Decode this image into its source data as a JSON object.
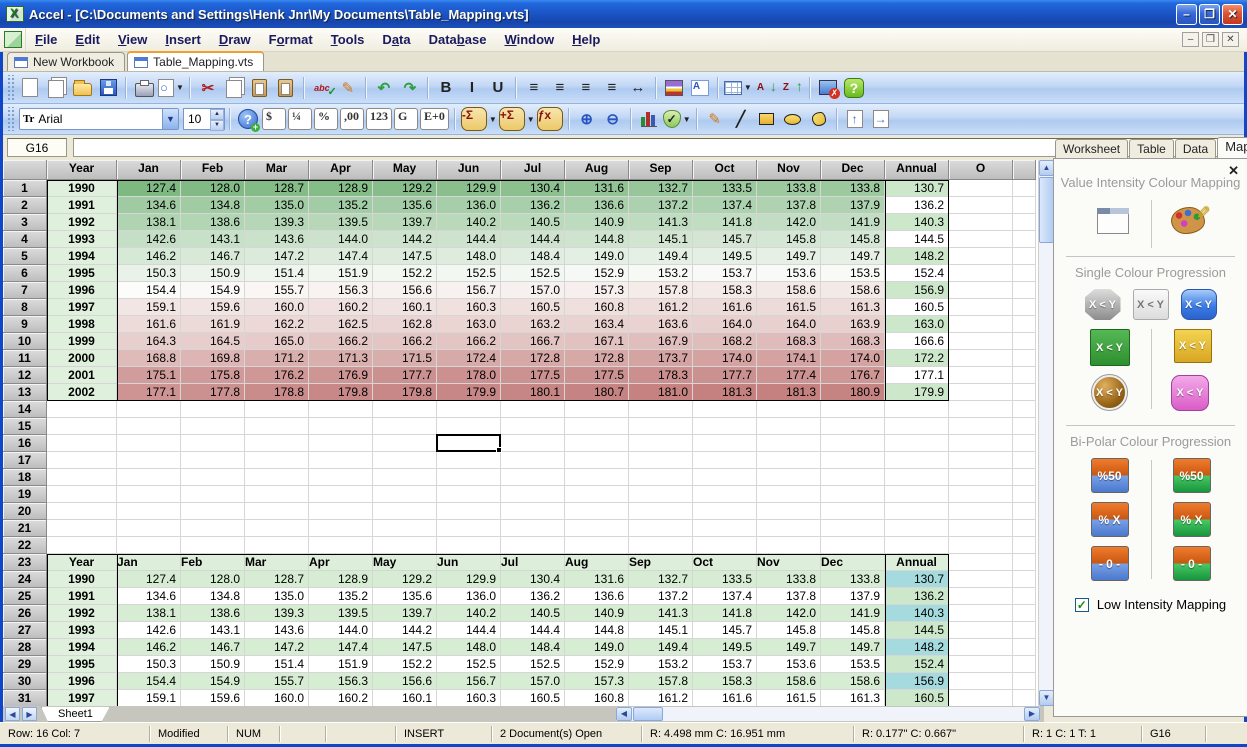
{
  "window": {
    "title": "Accel - [C:\\Documents and Settings\\Henk Jnr\\My Documents\\Table_Mapping.vts]"
  },
  "menu": {
    "items": [
      {
        "pre": "",
        "key": "F",
        "post": "ile"
      },
      {
        "pre": "",
        "key": "E",
        "post": "dit"
      },
      {
        "pre": "",
        "key": "V",
        "post": "iew"
      },
      {
        "pre": "",
        "key": "I",
        "post": "nsert"
      },
      {
        "pre": "",
        "key": "D",
        "post": "raw"
      },
      {
        "pre": "F",
        "key": "o",
        "post": "rmat"
      },
      {
        "pre": "",
        "key": "T",
        "post": "ools"
      },
      {
        "pre": "D",
        "key": "a",
        "post": "ta"
      },
      {
        "pre": "Data",
        "key": "b",
        "post": "ase"
      },
      {
        "pre": "",
        "key": "W",
        "post": "indow"
      },
      {
        "pre": "",
        "key": "H",
        "post": "elp"
      }
    ]
  },
  "doc_tabs": [
    {
      "label": "New Workbook",
      "active": false
    },
    {
      "label": "Table_Mapping.vts",
      "active": true
    }
  ],
  "toolbar1": [
    {
      "n": "new-document-icon",
      "c": "i-page"
    },
    {
      "n": "copy-pages-icon",
      "c": "i-pages"
    },
    {
      "n": "open-folder-icon",
      "c": "i-folder"
    },
    {
      "n": "save-icon",
      "c": "i-disk"
    },
    {
      "sep": true
    },
    {
      "n": "print-icon",
      "c": "i-printer"
    },
    {
      "n": "print-preview-icon",
      "c": "i-zoomdoc",
      "dd": true
    },
    {
      "sep": true
    },
    {
      "n": "cut-icon",
      "g": "✂",
      "cl": "gl-red"
    },
    {
      "n": "copy-icon",
      "c": "i-pages"
    },
    {
      "n": "paste-icon",
      "c": "i-clip",
      "pg": true
    },
    {
      "n": "paste-special-icon",
      "c": "i-clip",
      "pg": true
    },
    {
      "sep": true
    },
    {
      "n": "spellcheck-icon",
      "g": "abc",
      "cl": "i-abc"
    },
    {
      "n": "edit-pen-icon",
      "g": "✎",
      "cl": "gl-orange"
    },
    {
      "sep": true
    },
    {
      "n": "undo-icon",
      "g": "↶",
      "cl": "gl-green"
    },
    {
      "n": "redo-icon",
      "g": "↷",
      "cl": "gl-green"
    },
    {
      "sep": true
    },
    {
      "n": "bold-icon",
      "g": "B",
      "cl": "gl-dark"
    },
    {
      "n": "italic-icon",
      "g": "I",
      "cl": "gl-dark"
    },
    {
      "n": "underline-icon",
      "g": "U",
      "cl": "gl-dark"
    },
    {
      "sep": true
    },
    {
      "n": "align-left-icon",
      "g": "≡",
      "cl": "gl-dark"
    },
    {
      "n": "align-center-icon",
      "g": "≡",
      "cl": "gl-dark"
    },
    {
      "n": "align-right-icon",
      "g": "≡",
      "cl": "gl-dark"
    },
    {
      "n": "justify-icon",
      "g": "≡",
      "cl": "gl-dark"
    },
    {
      "n": "fit-width-icon",
      "g": "↔",
      "cl": "gl-dark"
    },
    {
      "sep": true
    },
    {
      "n": "fill-color-icon",
      "c": "i-cards"
    },
    {
      "n": "font-format-icon",
      "g": "A",
      "c": "i-fontbox"
    },
    {
      "sep": true
    },
    {
      "n": "table-borders-icon",
      "c": "i-table",
      "dd": true
    },
    {
      "n": "sort-ascending-icon",
      "g": "A",
      "cl": "i-sortA"
    },
    {
      "n": "sort-descending-icon",
      "g": "Z",
      "cl": "i-sortZ"
    },
    {
      "sep": true
    },
    {
      "n": "close-document-icon",
      "c": "i-monx"
    },
    {
      "n": "help-icon",
      "g": "?",
      "c": "i-help"
    }
  ],
  "toolbar2": {
    "font_name": "Arial",
    "font_size": "10",
    "icons": [
      {
        "sep": true
      },
      {
        "n": "insert-help-icon",
        "g": "?",
        "c": "i-helpq"
      },
      {
        "n": "currency-format-icon",
        "g": "$",
        "c": "btn-white"
      },
      {
        "n": "fraction-format-icon",
        "g": "¼",
        "c": "btn-white"
      },
      {
        "n": "percent-format-icon",
        "g": "%",
        "c": "btn-white"
      },
      {
        "n": "comma-format-icon",
        "g": ",00",
        "c": "btn-white"
      },
      {
        "n": "number-format-icon",
        "g": "123",
        "c": "btn-white"
      },
      {
        "n": "general-format-icon",
        "g": "G",
        "c": "btn-white"
      },
      {
        "n": "scientific-format-icon",
        "g": "E+0",
        "c": "btn-white"
      },
      {
        "sep": true
      },
      {
        "n": "sum-minus-icon",
        "g": "-Σ",
        "c": "btn-octa",
        "dd": true
      },
      {
        "n": "sum-plus-icon",
        "g": "+Σ",
        "c": "btn-octa",
        "dd": true
      },
      {
        "n": "function-icon",
        "g": "ƒx",
        "c": "btn-octa"
      },
      {
        "sep": true
      },
      {
        "n": "zoom-in-icon",
        "g": "⊕",
        "cl": "gl-blue"
      },
      {
        "n": "zoom-out-icon",
        "g": "⊖",
        "cl": "gl-blue"
      },
      {
        "sep": true
      },
      {
        "n": "chart-icon",
        "c": "i-chart",
        "bars": true
      },
      {
        "n": "validate-shield-icon",
        "g": "✓",
        "c": "i-shield",
        "dd": true
      },
      {
        "sep": true
      },
      {
        "n": "pencil-icon",
        "g": "✎",
        "cl": "gl-orange"
      },
      {
        "n": "line-icon",
        "g": "╱",
        "cl": "gl-dark"
      },
      {
        "n": "rectangle-icon",
        "c": "i-rect"
      },
      {
        "n": "ellipse-icon",
        "c": "i-oval"
      },
      {
        "n": "freeform-icon",
        "c": "i-blob"
      },
      {
        "sep": true
      },
      {
        "n": "page-up-icon",
        "g": "↑",
        "c": "i-arrpage"
      },
      {
        "n": "page-right-icon",
        "g": "→",
        "c": "i-arrpage"
      }
    ]
  },
  "formula_bar": {
    "cell_ref": "G16",
    "formula": ""
  },
  "grid": {
    "column_headers": [
      "",
      "Year",
      "Jan",
      "Feb",
      "Mar",
      "Apr",
      "May",
      "Jun",
      "Jul",
      "Aug",
      "Sep",
      "Oct",
      "Nov",
      "Dec",
      "Annual",
      "O",
      ""
    ],
    "table_columns": [
      "Year",
      "Jan",
      "Feb",
      "Mar",
      "Apr",
      "May",
      "Jun",
      "Jul",
      "Aug",
      "Sep",
      "Oct",
      "Nov",
      "Dec",
      "Annual"
    ],
    "years": [
      1990,
      1991,
      1992,
      1993,
      1994,
      1995,
      1996,
      1997,
      1998,
      1999,
      2000,
      2001,
      2002
    ],
    "monthly": [
      [
        127.4,
        128.0,
        128.7,
        128.9,
        129.2,
        129.9,
        130.4,
        131.6,
        132.7,
        133.5,
        133.8,
        133.8
      ],
      [
        134.6,
        134.8,
        135.0,
        135.2,
        135.6,
        136.0,
        136.2,
        136.6,
        137.2,
        137.4,
        137.8,
        137.9
      ],
      [
        138.1,
        138.6,
        139.3,
        139.5,
        139.7,
        140.2,
        140.5,
        140.9,
        141.3,
        141.8,
        142.0,
        141.9
      ],
      [
        142.6,
        143.1,
        143.6,
        144.0,
        144.2,
        144.4,
        144.4,
        144.8,
        145.1,
        145.7,
        145.8,
        145.8
      ],
      [
        146.2,
        146.7,
        147.2,
        147.4,
        147.5,
        148.0,
        148.4,
        149.0,
        149.4,
        149.5,
        149.7,
        149.7
      ],
      [
        150.3,
        150.9,
        151.4,
        151.9,
        152.2,
        152.5,
        152.5,
        152.9,
        153.2,
        153.7,
        153.6,
        153.5
      ],
      [
        154.4,
        154.9,
        155.7,
        156.3,
        156.6,
        156.7,
        157.0,
        157.3,
        157.8,
        158.3,
        158.6,
        158.6
      ],
      [
        159.1,
        159.6,
        160.0,
        160.2,
        160.1,
        160.3,
        160.5,
        160.8,
        161.2,
        161.6,
        161.5,
        161.3
      ],
      [
        161.6,
        161.9,
        162.2,
        162.5,
        162.8,
        163.0,
        163.2,
        163.4,
        163.6,
        164.0,
        164.0,
        163.9
      ],
      [
        164.3,
        164.5,
        165.0,
        166.2,
        166.2,
        166.2,
        166.7,
        167.1,
        167.9,
        168.2,
        168.3,
        168.3
      ],
      [
        168.8,
        169.8,
        171.2,
        171.3,
        171.5,
        172.4,
        172.8,
        172.8,
        173.7,
        174.0,
        174.1,
        174.0
      ],
      [
        175.1,
        175.8,
        176.2,
        176.9,
        177.7,
        178.0,
        177.5,
        177.5,
        178.3,
        177.7,
        177.4,
        176.7
      ],
      [
        177.1,
        177.8,
        178.8,
        179.8,
        179.8,
        179.9,
        180.1,
        180.7,
        181.0,
        181.3,
        181.3,
        180.9
      ]
    ],
    "annual": [
      130.7,
      136.2,
      140.3,
      144.5,
      148.2,
      152.4,
      156.9,
      160.5,
      163.0,
      166.6,
      172.2,
      177.1,
      179.9
    ],
    "table2_header_row": 23,
    "table2_visible_rows": 8,
    "row_count": 31,
    "selection": {
      "ref": "G16",
      "row": 16,
      "col": 7
    }
  },
  "colors": {
    "map_green": "#7eb982",
    "map_red": "#c48180",
    "map_white": "#fcfcfa",
    "annual_green": "#cde7cb",
    "annual_cyan": "#a5dbde",
    "stripe_green": "#d6ecd3",
    "year_col": "#dff0dd",
    "header2_bg": "#ddefdb"
  },
  "side_panel": {
    "tabs": [
      {
        "label": "Worksheet"
      },
      {
        "label": "Table"
      },
      {
        "label": "Data"
      },
      {
        "label": "Map",
        "active": true
      }
    ],
    "close_glyph": "✕",
    "title": "Value Intensity Colour Mapping",
    "single_section": {
      "label": "Single Colour Progression",
      "row1": [
        {
          "label": "X < Y",
          "style": "sc-octagon"
        },
        {
          "label": "X < Y",
          "style": "sc-flat"
        },
        {
          "label": "X < Y",
          "style": "sc-blue"
        }
      ],
      "row2": [
        {
          "label": "X < Y",
          "style": "sc-green"
        },
        {
          "label": "X < Y",
          "style": "sc-yellow"
        }
      ],
      "row3": [
        {
          "label": "X < Y",
          "style": "sc-brown"
        },
        {
          "label": "X < Y",
          "style": "sc-magenta"
        }
      ]
    },
    "bipolar_section": {
      "label": "Bi-Polar Colour Progression",
      "rows": [
        [
          {
            "label": "%50",
            "style": "bp-blue"
          },
          {
            "label": "%50",
            "style": "bp-green"
          }
        ],
        [
          {
            "label": "% X",
            "style": "bp-blue"
          },
          {
            "label": "% X",
            "style": "bp-green"
          }
        ],
        [
          {
            "label": "- 0 -",
            "style": "bp-blue"
          },
          {
            "label": "- 0 -",
            "style": "bp-green"
          }
        ]
      ]
    },
    "checkbox": {
      "label": "Low Intensity Mapping",
      "checked": true,
      "check_glyph": "✓"
    }
  },
  "sheet_bar": {
    "sheet_name": "Sheet1",
    "nav_left": "◀",
    "nav_right": "▶"
  },
  "status_bar": {
    "fields": [
      "Row: 16  Col:  7",
      "Modified",
      "NUM",
      "",
      "",
      "INSERT",
      "2 Document(s) Open",
      "R: 4.498 mm   C: 16.951 mm",
      "R: 0.177\"   C: 0.667\"",
      "R: 1  C: 1  T: 1",
      "G16"
    ]
  },
  "titlebar_buttons": {
    "minimize": "–",
    "maximize": "❐",
    "close": "✕"
  }
}
